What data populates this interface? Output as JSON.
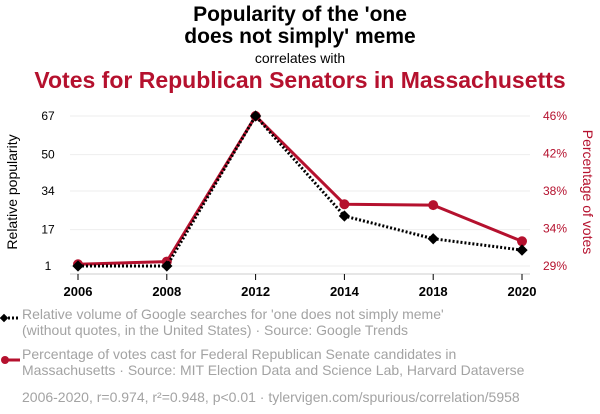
{
  "header": {
    "title_line1": "Popularity of the 'one",
    "title_line2": "does not simply' meme",
    "connector": "correlates with",
    "title2": "Votes for Republican Senators in Massachusetts"
  },
  "colors": {
    "series1": "#000000",
    "series2": "#b5112e",
    "muted": "#a3a3a3",
    "grid": "#eeeeee"
  },
  "chart_data": {
    "type": "line",
    "title": "Popularity of the 'one does not simply' meme correlates with Votes for Republican Senators in Massachusetts",
    "x": [
      "2006",
      "2008",
      "2012",
      "2014",
      "2018",
      "2020"
    ],
    "series": [
      {
        "name": "Relative volume of Google searches for 'one does not simply meme' (without quotes, in the United States) · Source: Google Trends",
        "axis": "left",
        "values": [
          1,
          1,
          67,
          23,
          13,
          8
        ]
      },
      {
        "name": "Percentage of votes cast for Federal Republican Senate candidates in Massachusetts · Source: MIT Election Data and Science Lab, Harvard Dataverse",
        "axis": "right",
        "values": [
          29.2,
          29.5,
          46.0,
          36.0,
          35.9,
          31.8
        ]
      }
    ],
    "ylabel": "Relative popularity",
    "ylabel_right": "Percentage of votes",
    "yticks": [
      "1",
      "17",
      "34",
      "50",
      "67"
    ],
    "ytick_values": [
      1,
      17,
      34,
      50,
      67
    ],
    "ylim": [
      1,
      67
    ],
    "yticks_right": [
      "29%",
      "34%",
      "38%",
      "42%",
      "46%"
    ],
    "ytick_values_right": [
      29,
      33.25,
      37.5,
      41.75,
      46
    ],
    "ylim_right": [
      29,
      46
    ],
    "grid": true,
    "legend": "bottom"
  },
  "legend": {
    "item1_line1": "Relative volume of Google searches for 'one does not simply meme'",
    "item1_line2": "(without quotes, in the United States) · Source: Google Trends",
    "item2_line1": "Percentage of votes cast for Federal Republican Senate candidates in",
    "item2_line2": "Massachusetts · Source: MIT Election Data and Science Lab, Harvard Dataverse"
  },
  "footer": "2006-2020, r=0.974, r²=0.948, p<0.01 · tylervigen.com/spurious/correlation/5958"
}
